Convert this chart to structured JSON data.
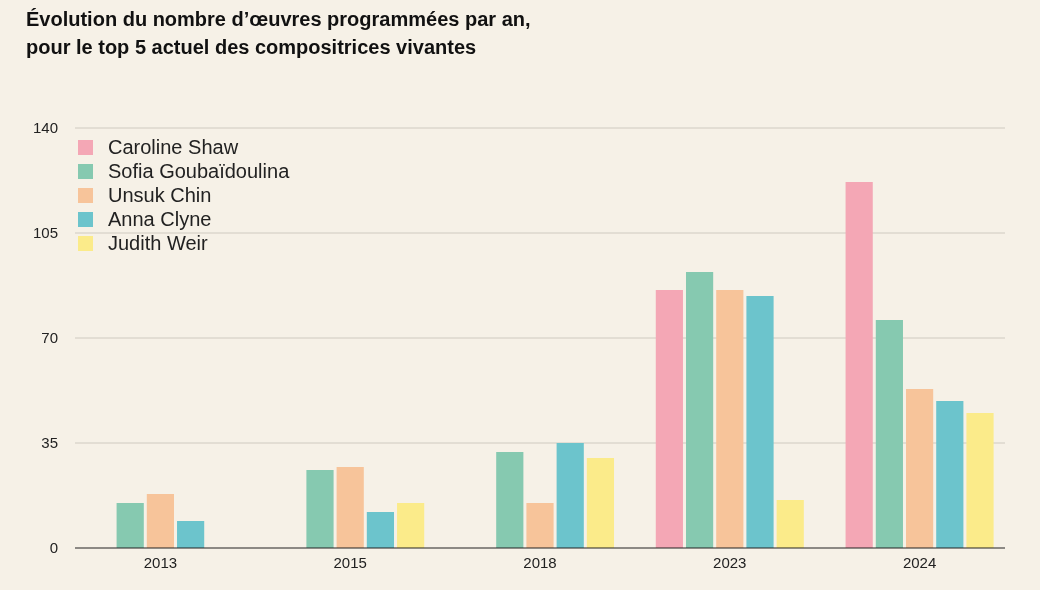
{
  "chart_data": {
    "type": "bar",
    "title": "Évolution du nombre d’œuvres programmées par an,\npour le top 5 actuel des compositrices vivantes",
    "categories": [
      "2013",
      "2015",
      "2018",
      "2023",
      "2024"
    ],
    "series": [
      {
        "name": "Caroline Shaw",
        "color": "#f4a7b5",
        "values": [
          null,
          null,
          null,
          86,
          122
        ]
      },
      {
        "name": "Sofia Goubaïdoulina",
        "color": "#86c9b0",
        "values": [
          15,
          26,
          32,
          92,
          76
        ]
      },
      {
        "name": "Unsuk Chin",
        "color": "#f7c49a",
        "values": [
          18,
          27,
          15,
          86,
          53
        ]
      },
      {
        "name": "Anna Clyne",
        "color": "#6cc4cc",
        "values": [
          9,
          12,
          35,
          84,
          49
        ]
      },
      {
        "name": "Judith Weir",
        "color": "#fbeb8a",
        "values": [
          null,
          15,
          30,
          16,
          45
        ]
      }
    ],
    "ylim": [
      0,
      140
    ],
    "yticks": [
      0,
      35,
      70,
      105,
      140
    ],
    "grid": "y",
    "legend": "top left"
  }
}
